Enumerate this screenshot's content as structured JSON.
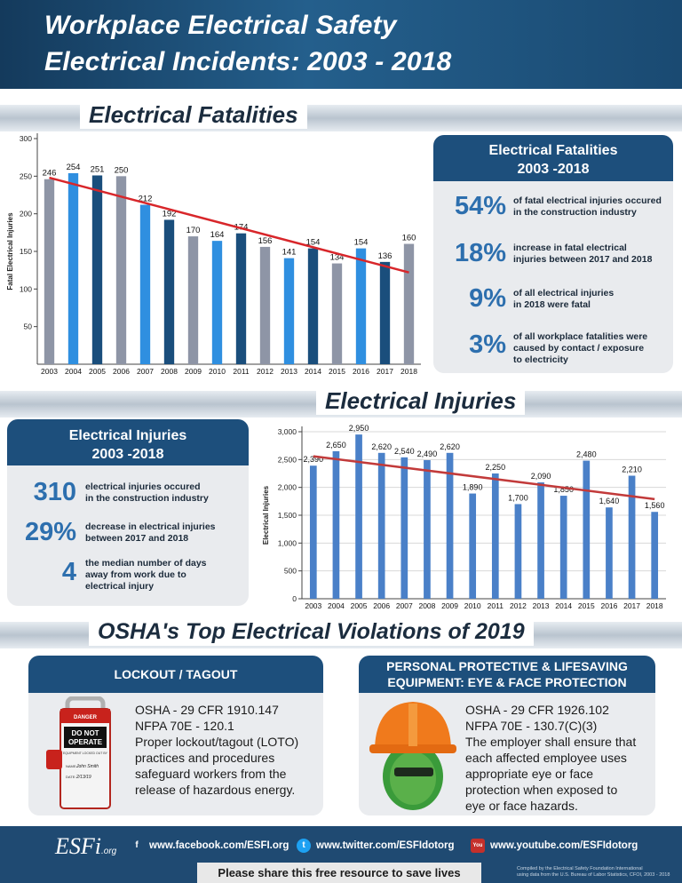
{
  "header": {
    "title_line1": "Workplace Electrical Safety",
    "title_line2": "Electrical Incidents: 2003 - 2018"
  },
  "fatalities_section": {
    "title": "Electrical Fatalities",
    "panel_title_line1": "Electrical Fatalities",
    "panel_title_line2": "2003 -2018",
    "stats": [
      {
        "value": "54%",
        "text_line1": "of fatal electrical injuries occured",
        "text_line2": "in the construction industry",
        "text_line3": ""
      },
      {
        "value": "18%",
        "text_line1": "increase in fatal electrical",
        "text_line2": "injuries between 2017 and 2018",
        "text_line3": ""
      },
      {
        "value": "9%",
        "text_line1": "of all electrical injuries",
        "text_line2": "in 2018 were fatal",
        "text_line3": ""
      },
      {
        "value": "3%",
        "text_line1": "of all workplace fatalities were",
        "text_line2": "caused by contact / exposure",
        "text_line3": "to electricity"
      }
    ]
  },
  "injuries_section": {
    "title": "Electrical Injuries",
    "panel_title_line1": "Electrical Injuries",
    "panel_title_line2": "2003 -2018",
    "stats": [
      {
        "value": "310",
        "text_line1": "electrical injuries occured",
        "text_line2": "in the construction industry",
        "text_line3": ""
      },
      {
        "value": "29%",
        "text_line1": "decrease in electrical injuries",
        "text_line2": "between 2017 and 2018",
        "text_line3": ""
      },
      {
        "value": "4",
        "text_line1": "the median number of days",
        "text_line2": "away from work due to",
        "text_line3": "electrical injury"
      }
    ]
  },
  "violations_section": {
    "title": "OSHA's Top Electrical Violations of 2019",
    "lockout": {
      "title": "LOCKOUT / TAGOUT",
      "line1": "OSHA - 29 CFR 1910.147",
      "line2": "NFPA 70E - 120.1",
      "line3": "Proper lockout/tagout (LOTO)",
      "line4": "practices and procedures",
      "line5": "safeguard workers from the",
      "line6": "release of hazardous energy.",
      "tag_header": "DANGER",
      "tag_main1": "DO NOT",
      "tag_main2": "OPERATE",
      "tag_sub": "EQUIPMENT LOCKED OUT BY",
      "tag_name_label": "NAME:",
      "tag_name": "John Smith",
      "tag_date_label": "DATE:",
      "tag_date": "2/13/19"
    },
    "ppe": {
      "title_line1": "PERSONAL PROTECTIVE & LIFESAVING",
      "title_line2": "EQUIPMENT: EYE & FACE PROTECTION",
      "line1": "OSHA - 29 CFR 1926.102",
      "line2": "NFPA 70E - 130.7(C)(3)",
      "line3": "The employer shall ensure that",
      "line4": "each affected employee uses",
      "line5": "appropriate eye or face",
      "line6": "protection when exposed to",
      "line7": "eye or face hazards."
    }
  },
  "footer": {
    "logo": "ESFi",
    "logo_suffix": ".org",
    "facebook_icon": "f",
    "facebook": "www.facebook.com/ESFI.org",
    "twitter_icon": "t",
    "twitter": "www.twitter.com/ESFIdotorg",
    "youtube_icon": "You",
    "youtube": "www.youtube.com/ESFIdotorg",
    "share": "Please share this free resource to save lives",
    "credit_line1": "Compiled by the Electrical Safety Foundation International",
    "credit_line2": "using data from the U.S. Bureau of Labor Statistics, CFOI, 2003 - 2018"
  },
  "colors": {
    "navy": "#1d4f7c",
    "accent_blue": "#2d6fae",
    "trend_red": "#d8262a",
    "bar_grey": "#8e95a6",
    "bar_light_blue": "#2f8fe0",
    "bar_dark_blue": "#1a4e7c",
    "bar_injury_blue": "#4a80c8"
  },
  "chart_data": [
    {
      "type": "bar",
      "title": "",
      "xlabel": "",
      "ylabel": "Fatal Electrical Injuries",
      "categories": [
        "2003",
        "2004",
        "2005",
        "2006",
        "2007",
        "2008",
        "2009",
        "2010",
        "2011",
        "2012",
        "2013",
        "2014",
        "2015",
        "2016",
        "2017",
        "2018"
      ],
      "values": [
        246,
        254,
        251,
        250,
        212,
        192,
        170,
        164,
        174,
        156,
        141,
        154,
        134,
        154,
        136,
        160
      ],
      "data_labels": [
        "246",
        "254",
        "251",
        "250",
        "212",
        "192",
        "170",
        "164",
        "174",
        "156",
        "141",
        "154",
        "134",
        "154",
        "136",
        "160"
      ],
      "bar_colors": [
        "#8e95a6",
        "#2f8fe0",
        "#1a4e7c",
        "#8e95a6",
        "#2f8fe0",
        "#1a4e7c",
        "#8e95a6",
        "#2f8fe0",
        "#1a4e7c",
        "#8e95a6",
        "#2f8fe0",
        "#1a4e7c",
        "#8e95a6",
        "#2f8fe0",
        "#1a4e7c",
        "#8e95a6"
      ],
      "trendline": {
        "start": 248,
        "end": 122,
        "color": "#d8262a"
      },
      "yticks": [
        50,
        100,
        150,
        200,
        250,
        300
      ],
      "ytick_labels": [
        "50",
        "100",
        "150",
        "200",
        "250",
        "300"
      ],
      "ylim": [
        0,
        300
      ],
      "grid": false
    },
    {
      "type": "bar",
      "title": "",
      "xlabel": "",
      "ylabel": "Electrical Injuries",
      "categories": [
        "2003",
        "2004",
        "2005",
        "2006",
        "2007",
        "2008",
        "2009",
        "2010",
        "2011",
        "2012",
        "2013",
        "2014",
        "2015",
        "2016",
        "2017",
        "2018"
      ],
      "values": [
        2390,
        2650,
        2950,
        2620,
        2540,
        2490,
        2620,
        1890,
        2250,
        1700,
        2090,
        1850,
        2480,
        1640,
        2210,
        1560
      ],
      "data_labels": [
        "2,390",
        "2,650",
        "2,950",
        "2,620",
        "2,540",
        "2,490",
        "2,620",
        "1,890",
        "2,250",
        "1,700",
        "2,090",
        "1,850",
        "2,480",
        "1,640",
        "2,210",
        "1,560"
      ],
      "bar_color": "#4a80c8",
      "trendline": {
        "start": 2560,
        "end": 1790,
        "color": "#c23a3a"
      },
      "yticks": [
        0,
        500,
        1000,
        1500,
        2000,
        2500,
        3000
      ],
      "ytick_labels": [
        "0",
        "500",
        "1,000",
        "1,500",
        "2,000",
        "2,500",
        "3,000"
      ],
      "ylim": [
        0,
        3000
      ],
      "grid": true
    }
  ]
}
